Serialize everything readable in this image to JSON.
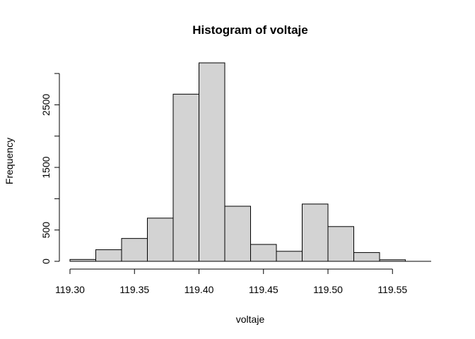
{
  "chart_data": {
    "type": "bar",
    "title": "Histogram of voltaje",
    "xlabel": "voltaje",
    "ylabel": "Frequency",
    "bin_edges": [
      119.3,
      119.32,
      119.34,
      119.36,
      119.38,
      119.4,
      119.42,
      119.44,
      119.46,
      119.48,
      119.5,
      119.52,
      119.54,
      119.56,
      119.58
    ],
    "values": [
      30,
      185,
      365,
      690,
      2670,
      3170,
      880,
      270,
      160,
      915,
      555,
      140,
      25,
      0
    ],
    "xlim": [
      119.3,
      119.58
    ],
    "ylim": [
      0,
      3170
    ],
    "x_ticks": [
      119.3,
      119.35,
      119.4,
      119.45,
      119.5,
      119.55
    ],
    "x_tick_labels": [
      "119.30",
      "119.35",
      "119.40",
      "119.45",
      "119.50",
      "119.55"
    ],
    "y_ticks": [
      0,
      500,
      1500,
      2500
    ],
    "y_tick_labels": [
      "0",
      "500",
      "1500",
      "2500"
    ],
    "y_minor_ticks": [
      1000,
      2000,
      3000
    ],
    "grid": false,
    "legend": "none"
  }
}
